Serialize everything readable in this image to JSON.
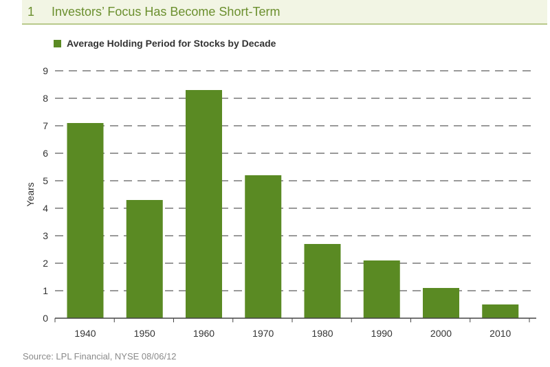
{
  "header": {
    "figure_number": "1",
    "title": "Investors’ Focus Has Become Short-Term"
  },
  "source_note": "Source: LPL Financial, NYSE   08/06/12",
  "colors": {
    "bar": "#5a8a23",
    "title": "#6b8f2e",
    "header_bg": "#f2f5e4",
    "grid": "#333333"
  },
  "chart_data": {
    "type": "bar",
    "title": "",
    "categories": [
      "1940",
      "1950",
      "1960",
      "1970",
      "1980",
      "1990",
      "2000",
      "2010"
    ],
    "series": [
      {
        "name": "Average Holding Period for Stocks by Decade",
        "values": [
          7.1,
          4.3,
          8.3,
          5.2,
          2.7,
          2.1,
          1.1,
          0.5
        ]
      }
    ],
    "xlabel": "",
    "ylabel": "Years",
    "ylim": [
      0,
      9
    ],
    "yticks": [
      "0",
      "1",
      "2",
      "3",
      "4",
      "5",
      "6",
      "7",
      "8",
      "9"
    ],
    "grid": true,
    "grid_style": "dashed",
    "legend_position": "top-left"
  }
}
